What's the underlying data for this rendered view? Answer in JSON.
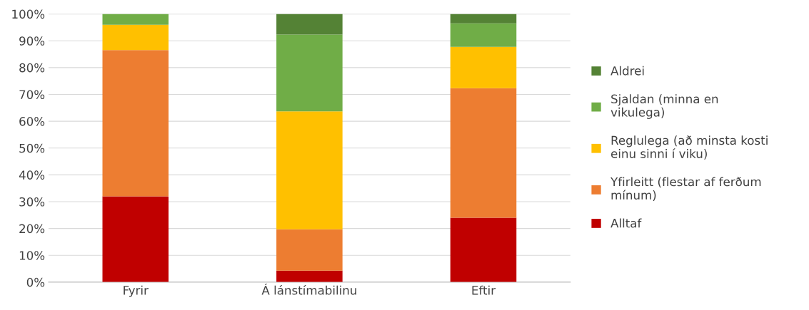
{
  "chart_data": {
    "type": "bar",
    "stacked": true,
    "categories": [
      "Fyrir",
      "Á lánstímabilinu",
      "Eftir"
    ],
    "series": [
      {
        "name": "Alltaf",
        "color": "#c00000",
        "values": [
          32,
          4.3,
          24
        ]
      },
      {
        "name": "Yfirleitt (flestar af ferðum\nmínum)",
        "color": "#ed7d31",
        "values": [
          54.5,
          15.4,
          48.3
        ]
      },
      {
        "name": "Reglulega (að minsta kosti\neinu sinni í viku)",
        "color": "#ffc000",
        "values": [
          9.5,
          44,
          15.4
        ]
      },
      {
        "name": "Sjaldan (minna en\nvikulega)",
        "color": "#70ad47",
        "values": [
          4,
          28.6,
          8.8
        ]
      },
      {
        "name": "Aldrei",
        "color": "#548235",
        "values": [
          null,
          7.7,
          3.5
        ]
      }
    ],
    "ylim": [
      0,
      100
    ],
    "yticks": [
      {
        "value": 0,
        "label": "0%"
      },
      {
        "value": 10,
        "label": "10%"
      },
      {
        "value": 20,
        "label": "20%"
      },
      {
        "value": 30,
        "label": "30%"
      },
      {
        "value": 40,
        "label": "40%"
      },
      {
        "value": 50,
        "label": "50%"
      },
      {
        "value": 60,
        "label": "60%"
      },
      {
        "value": 70,
        "label": "70%"
      },
      {
        "value": 80,
        "label": "80%"
      },
      {
        "value": 90,
        "label": "90%"
      },
      {
        "value": 100,
        "label": "100%"
      }
    ],
    "grid": "y",
    "legend": "right"
  }
}
